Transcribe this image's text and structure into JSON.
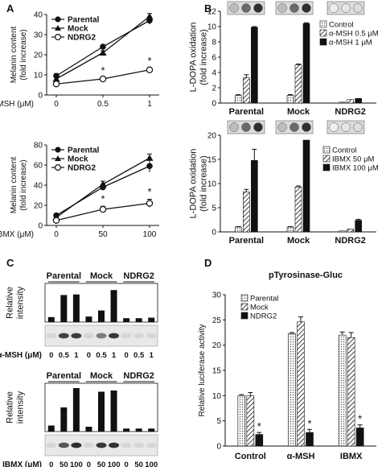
{
  "panel_labels": [
    "A",
    "B",
    "C",
    "D"
  ],
  "chart_data": [
    {
      "id": "A_top",
      "type": "line",
      "xlabel": "α-MSH (μM)",
      "ylabel": "Melanin content (fold increase)",
      "ylabel_lines": [
        "Melanin content",
        "(fold increase)"
      ],
      "x_categories": [
        "0",
        "0.5",
        "1"
      ],
      "ylim": [
        0,
        40
      ],
      "yticks": [
        0,
        10,
        20,
        30,
        40
      ],
      "legend": "top-left",
      "series": [
        {
          "name": "Parental",
          "marker": "filled-circle",
          "values": [
            9.5,
            24,
            37
          ],
          "err": [
            1,
            0.8,
            1.8
          ]
        },
        {
          "name": "Mock",
          "marker": "filled-triangle",
          "values": [
            8,
            21,
            39
          ],
          "err": [
            0.8,
            1,
            1.5
          ]
        },
        {
          "name": "NDRG2",
          "marker": "open-circle",
          "values": [
            5.5,
            8,
            12.5
          ],
          "err": [
            0.5,
            0.5,
            0.8
          ]
        }
      ],
      "annotations": [
        {
          "x": "0.5",
          "text": "*"
        },
        {
          "x": "1",
          "text": "*"
        }
      ]
    },
    {
      "id": "A_bottom",
      "type": "line",
      "xlabel": "IBMX (μM)",
      "ylabel": "Melanin content (fold increase)",
      "ylabel_lines": [
        "Melanin content",
        "(fold increase)"
      ],
      "x_categories": [
        "0",
        "50",
        "100"
      ],
      "ylim": [
        0,
        80
      ],
      "yticks": [
        0,
        20,
        40,
        60,
        80
      ],
      "legend": "top-left",
      "series": [
        {
          "name": "Parental",
          "marker": "filled-circle",
          "values": [
            10,
            38,
            59
          ],
          "err": [
            1.5,
            3,
            6
          ]
        },
        {
          "name": "Mock",
          "marker": "filled-triangle",
          "values": [
            8,
            41,
            67
          ],
          "err": [
            1,
            3,
            4
          ]
        },
        {
          "name": "NDRG2",
          "marker": "open-circle",
          "values": [
            5,
            16,
            22
          ],
          "err": [
            1,
            3,
            4
          ]
        }
      ],
      "annotations": [
        {
          "x": "50",
          "text": "*"
        },
        {
          "x": "100",
          "text": "*"
        }
      ]
    },
    {
      "id": "B_top",
      "type": "bar",
      "ylabel": "L-DOPA oxidation (fold increase)",
      "ylabel_lines": [
        "L-DOPA oxidation",
        "(fold increase)"
      ],
      "categories": [
        "Parental",
        "Mock",
        "NDRG2"
      ],
      "ylim": [
        0,
        12
      ],
      "yticks": [
        0,
        2,
        4,
        6,
        8,
        10,
        12
      ],
      "legend": "top-right",
      "series": [
        {
          "name": "Control",
          "pattern": "dots",
          "values": [
            1,
            1,
            0.12
          ],
          "err": [
            0.1,
            0.1,
            0
          ]
        },
        {
          "name": "α-MSH 0.5 μM",
          "pattern": "hatch",
          "values": [
            3.3,
            5,
            0.45
          ],
          "err": [
            0.4,
            0.1,
            0
          ]
        },
        {
          "name": "α-MSH   1 μM",
          "pattern": "solid",
          "values": [
            9.9,
            10.4,
            0.6
          ],
          "err": [
            0.1,
            0.1,
            0
          ]
        }
      ]
    },
    {
      "id": "B_bottom",
      "type": "bar",
      "ylabel": "L-DOPA oxidation (fold increase)",
      "ylabel_lines": [
        "L-DOPA oxidation",
        "(fold increase)"
      ],
      "categories": [
        "Parental",
        "Mock",
        "NDRG2"
      ],
      "ylim": [
        0,
        20
      ],
      "yticks": [
        0,
        5,
        10,
        15,
        20
      ],
      "legend": "top-right",
      "series": [
        {
          "name": "Control",
          "pattern": "dots",
          "values": [
            1,
            1,
            0.2
          ],
          "err": [
            0.1,
            0.1,
            0
          ]
        },
        {
          "name": "IBMX   50 μM",
          "pattern": "hatch",
          "values": [
            8.3,
            9.3,
            0.6
          ],
          "err": [
            0.5,
            0.2,
            0
          ]
        },
        {
          "name": "IBMX 100 μM",
          "pattern": "solid",
          "values": [
            14.8,
            19,
            2.4
          ],
          "err": [
            2.3,
            0,
            0.2
          ]
        }
      ]
    },
    {
      "id": "C_top",
      "type": "bar",
      "ylabel": "Relative intensity",
      "ylabel_lines": [
        "Relative",
        "intensity"
      ],
      "group_labels": [
        "Parental",
        "Mock",
        "NDRG2"
      ],
      "xlabel": "α-MSH (μM)",
      "lane_labels": [
        "0",
        "0.5",
        "1",
        "0",
        "0.5",
        "1",
        "0",
        "0.5",
        "1"
      ],
      "ylim": [
        0,
        70
      ],
      "values": [
        9,
        49,
        50,
        10,
        21,
        58,
        7,
        7,
        8
      ],
      "blot_intensity": [
        0.05,
        0.8,
        0.82,
        0.06,
        0.5,
        0.85,
        0.05,
        0.05,
        0.05
      ]
    },
    {
      "id": "C_bottom",
      "type": "bar",
      "ylabel": "Relative intensity",
      "ylabel_lines": [
        "Relative",
        "intensity"
      ],
      "group_labels": [
        "Parental",
        "Mock",
        "NDRG2"
      ],
      "xlabel": "IBMX (μM)",
      "lane_labels": [
        "0",
        "50",
        "100",
        "0",
        "50",
        "100",
        "0",
        "50",
        "100"
      ],
      "ylim": [
        0,
        80
      ],
      "values": [
        10,
        40,
        72,
        8,
        66,
        68,
        5,
        5,
        5
      ],
      "blot_intensity": [
        0.05,
        0.7,
        0.9,
        0.05,
        0.85,
        0.88,
        0.05,
        0.05,
        0.05
      ]
    },
    {
      "id": "D",
      "type": "bar",
      "title": "pTyrosinase-Gluc",
      "ylabel": "Relative luciferase activity",
      "categories": [
        "Control",
        "α-MSH",
        "IBMX"
      ],
      "ylim": [
        0,
        30
      ],
      "yticks": [
        0,
        5,
        10,
        15,
        20,
        25,
        30
      ],
      "legend": "top-left",
      "series": [
        {
          "name": "Parental",
          "pattern": "dots",
          "values": [
            10,
            22.3,
            22
          ],
          "err": [
            0.2,
            0.2,
            0.6
          ]
        },
        {
          "name": "Mock",
          "pattern": "hatch",
          "values": [
            10,
            24.6,
            21.5
          ],
          "err": [
            0.6,
            1,
            1
          ]
        },
        {
          "name": "NDRG2",
          "pattern": "solid",
          "values": [
            2.3,
            2.7,
            3.6
          ],
          "err": [
            0.4,
            0.6,
            0.6
          ]
        }
      ],
      "annotations": [
        {
          "category": "Control",
          "text": "*"
        },
        {
          "category": "α-MSH",
          "text": "*"
        },
        {
          "category": "IBMX",
          "text": "*"
        }
      ]
    }
  ]
}
